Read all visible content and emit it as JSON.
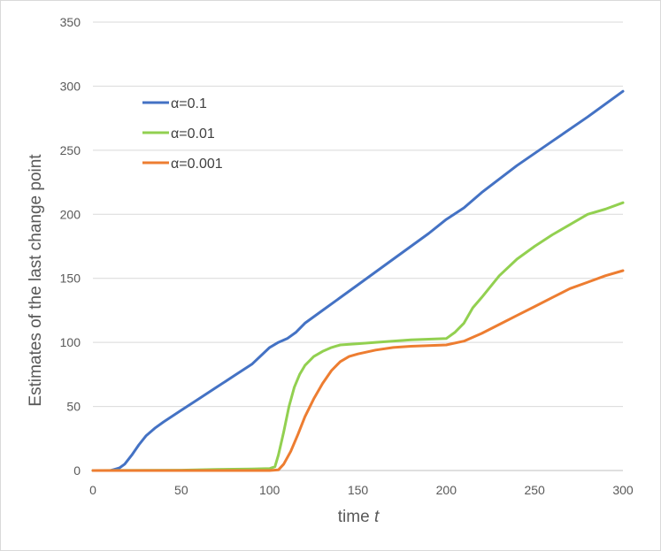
{
  "chart_data": {
    "type": "line",
    "title": "",
    "xlabel": "time",
    "xlabel_var": "t",
    "ylabel": "Estimates of the last change point",
    "xlim": [
      0,
      300
    ],
    "ylim": [
      0,
      350
    ],
    "x_ticks": [
      "0",
      "50",
      "100",
      "150",
      "200",
      "250",
      "300"
    ],
    "y_ticks": [
      "0",
      "50",
      "100",
      "150",
      "200",
      "250",
      "300",
      "350"
    ],
    "grid": "horizontal",
    "legend_position": "top-left",
    "series": [
      {
        "name": "α=0.1",
        "color": "#4472C4",
        "points": [
          [
            0,
            0
          ],
          [
            10,
            0
          ],
          [
            15,
            2
          ],
          [
            18,
            5
          ],
          [
            22,
            12
          ],
          [
            26,
            20
          ],
          [
            30,
            27
          ],
          [
            35,
            33
          ],
          [
            40,
            38
          ],
          [
            50,
            47
          ],
          [
            60,
            56
          ],
          [
            70,
            65
          ],
          [
            80,
            74
          ],
          [
            90,
            83
          ],
          [
            100,
            96
          ],
          [
            105,
            100
          ],
          [
            110,
            103
          ],
          [
            115,
            108
          ],
          [
            120,
            115
          ],
          [
            130,
            125
          ],
          [
            150,
            145
          ],
          [
            170,
            165
          ],
          [
            190,
            185
          ],
          [
            200,
            196
          ],
          [
            210,
            205
          ],
          [
            220,
            217
          ],
          [
            240,
            238
          ],
          [
            260,
            257
          ],
          [
            280,
            276
          ],
          [
            300,
            296
          ]
        ]
      },
      {
        "name": "α=0.01",
        "color": "#92D050",
        "points": [
          [
            0,
            0
          ],
          [
            50,
            0.3
          ],
          [
            70,
            0.8
          ],
          [
            90,
            1.2
          ],
          [
            100,
            1.5
          ],
          [
            103,
            3
          ],
          [
            105,
            12
          ],
          [
            108,
            30
          ],
          [
            111,
            50
          ],
          [
            114,
            65
          ],
          [
            117,
            75
          ],
          [
            120,
            82
          ],
          [
            125,
            89
          ],
          [
            130,
            93
          ],
          [
            135,
            96
          ],
          [
            140,
            98
          ],
          [
            150,
            99
          ],
          [
            160,
            100
          ],
          [
            180,
            102
          ],
          [
            200,
            103
          ],
          [
            205,
            108
          ],
          [
            210,
            115
          ],
          [
            215,
            127
          ],
          [
            220,
            135
          ],
          [
            230,
            152
          ],
          [
            240,
            165
          ],
          [
            250,
            175
          ],
          [
            260,
            184
          ],
          [
            270,
            192
          ],
          [
            280,
            200
          ],
          [
            290,
            204
          ],
          [
            300,
            209
          ]
        ]
      },
      {
        "name": "α=0.001",
        "color": "#ED7D31",
        "points": [
          [
            0,
            0
          ],
          [
            50,
            0
          ],
          [
            80,
            0
          ],
          [
            100,
            0
          ],
          [
            105,
            0.5
          ],
          [
            108,
            5
          ],
          [
            112,
            15
          ],
          [
            116,
            28
          ],
          [
            120,
            42
          ],
          [
            125,
            56
          ],
          [
            130,
            68
          ],
          [
            135,
            78
          ],
          [
            140,
            85
          ],
          [
            145,
            89
          ],
          [
            150,
            91
          ],
          [
            160,
            94
          ],
          [
            170,
            96
          ],
          [
            180,
            97
          ],
          [
            190,
            97.5
          ],
          [
            200,
            98
          ],
          [
            210,
            101
          ],
          [
            220,
            107
          ],
          [
            230,
            114
          ],
          [
            240,
            121
          ],
          [
            250,
            128
          ],
          [
            260,
            135
          ],
          [
            270,
            142
          ],
          [
            280,
            147
          ],
          [
            290,
            152
          ],
          [
            300,
            156
          ]
        ]
      }
    ]
  }
}
